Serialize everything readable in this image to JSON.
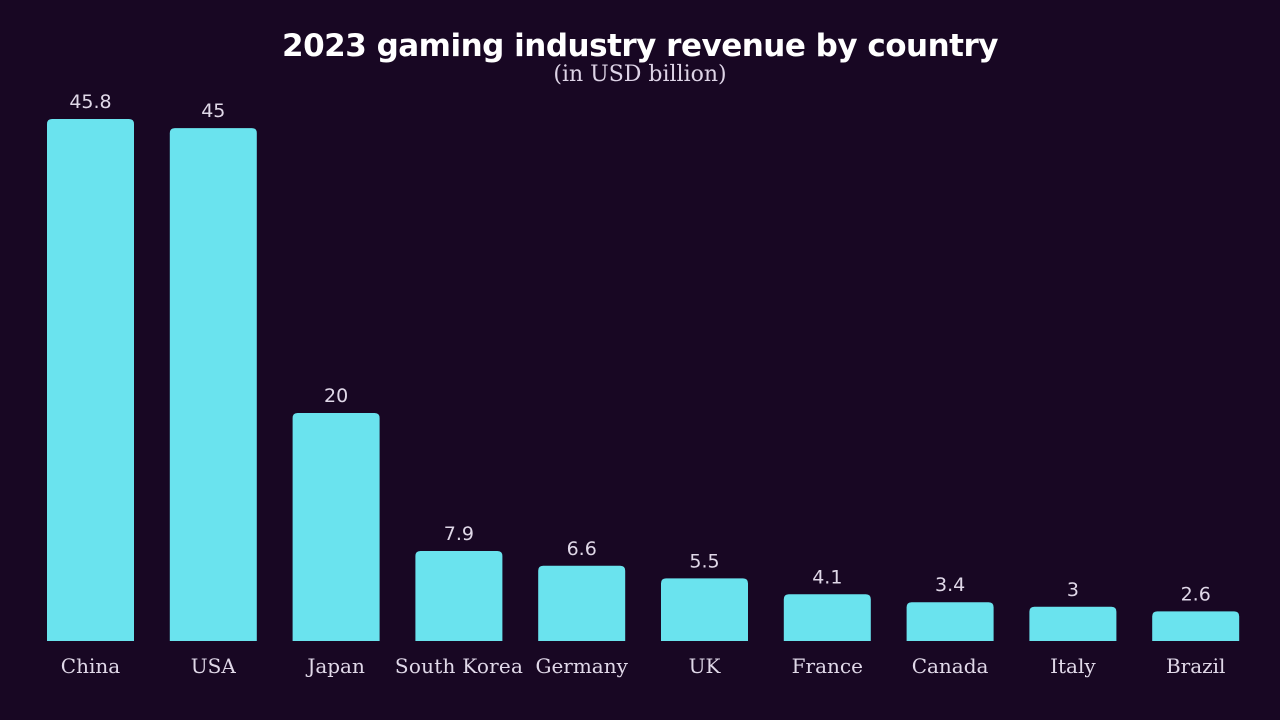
{
  "chart_data": {
    "type": "bar",
    "title": "2023 gaming industry revenue by country",
    "subtitle": "(in USD billion)",
    "categories": [
      "China",
      "USA",
      "Japan",
      "South Korea",
      "Germany",
      "UK",
      "France",
      "Canada",
      "Italy",
      "Brazil"
    ],
    "values": [
      45.8,
      45,
      20,
      7.9,
      6.6,
      5.5,
      4.1,
      3.4,
      3,
      2.6
    ],
    "value_labels": [
      "45.8",
      "45",
      "20",
      "7.9",
      "6.6",
      "5.5",
      "4.1",
      "3.4",
      "3",
      "2.6"
    ],
    "ylim": [
      0,
      45.8
    ],
    "grid": false,
    "colors": {
      "background": "#180723",
      "bar": "#6ae3ee",
      "label": "#e0d8e8"
    }
  }
}
